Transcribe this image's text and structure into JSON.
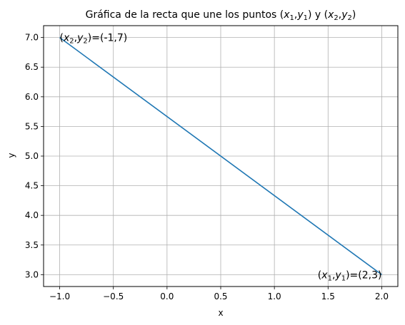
{
  "chart_data": {
    "type": "line",
    "title": {
      "prefix": "Gráfica de la recta que une los puntos (",
      "x1": "x",
      "s1": "1",
      "comma1": ",",
      "y1": "y",
      "s2": "1",
      "mid": ") y (",
      "x2": "x",
      "s3": "2",
      "comma2": ",",
      "y2": "y",
      "s4": "2",
      "suffix": ")"
    },
    "xlabel": "x",
    "ylabel": "y",
    "xlim": [
      -1.15,
      2.15
    ],
    "ylim": [
      2.8,
      7.2
    ],
    "grid": true,
    "line_color": "#1f77b4",
    "series": [
      {
        "x": [
          -1,
          2
        ],
        "y": [
          7,
          3
        ]
      }
    ],
    "x_ticks": [
      -1.0,
      -0.5,
      0.0,
      0.5,
      1.0,
      1.5,
      2.0
    ],
    "x_tick_labels": [
      "−1.0",
      "−0.5",
      "0.0",
      "0.5",
      "1.0",
      "1.5",
      "2.0"
    ],
    "y_ticks": [
      3.0,
      3.5,
      4.0,
      4.5,
      5.0,
      5.5,
      6.0,
      6.5,
      7.0
    ],
    "y_tick_labels": [
      "3.0",
      "3.5",
      "4.0",
      "4.5",
      "5.0",
      "5.5",
      "6.0",
      "6.5",
      "7.0"
    ],
    "annotations": [
      {
        "x": 2,
        "y": 3,
        "anchor": "end",
        "open": "(",
        "a": "x",
        "sa": "1",
        "comma": ",",
        "b": "y",
        "sb": "1",
        "value": ")=(2,3)"
      },
      {
        "x": -1,
        "y": 7,
        "anchor": "start",
        "open": "(",
        "a": "x",
        "sa": "2",
        "comma": ",",
        "b": "y",
        "sb": "2",
        "value": ")=(-1,7)"
      }
    ]
  }
}
